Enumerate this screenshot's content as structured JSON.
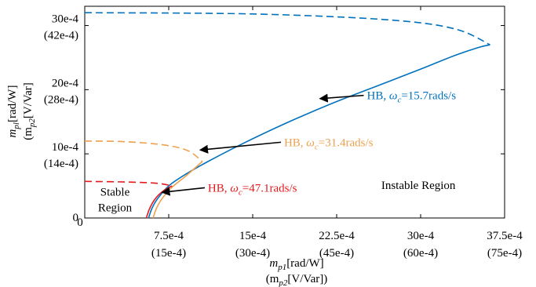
{
  "chart_data": {
    "type": "line",
    "xlim": [
      0,
      0.00375
    ],
    "ylim": [
      0,
      0.0033
    ],
    "x_ticks": [
      {
        "value": 0,
        "label": "0",
        "sub": ""
      },
      {
        "value": 0.00075,
        "label": "7.5e-4",
        "sub": "(15e-4)"
      },
      {
        "value": 0.0015,
        "label": "15e-4",
        "sub": "(30e-4)"
      },
      {
        "value": 0.00225,
        "label": "22.5e-4",
        "sub": "(45e-4)"
      },
      {
        "value": 0.003,
        "label": "30e-4",
        "sub": "(60e-4)"
      },
      {
        "value": 0.00375,
        "label": "37.5e-4",
        "sub": "(75e-4)"
      }
    ],
    "y_ticks": [
      {
        "value": 0,
        "label": "0",
        "sub": ""
      },
      {
        "value": 0.001,
        "label": "10e-4",
        "sub": "(14e-4)"
      },
      {
        "value": 0.002,
        "label": "20e-4",
        "sub": "(28e-4)"
      },
      {
        "value": 0.003,
        "label": "30e-4",
        "sub": "(42e-4)"
      }
    ],
    "xlabel": {
      "main": "m",
      "main_sub": "p1",
      "main_unit": "[rad/W]",
      "alt": "(m",
      "alt_sub": "p2",
      "alt_unit": "[V/Var])"
    },
    "ylabel": {
      "main": "m",
      "main_sub": "pl",
      "main_unit": "[rad/W]",
      "alt": "(m",
      "alt_sub": "p2",
      "alt_unit": "[V/Var]"
    },
    "grid": false,
    "series": [
      {
        "color": "#0072BD",
        "solid": [
          [
            0.00057,
            0
          ],
          [
            0.0006,
            0.00015
          ],
          [
            0.00065,
            0.0003
          ],
          [
            0.00075,
            0.0005
          ],
          [
            0.0009,
            0.00068
          ],
          [
            0.0011,
            0.00088
          ],
          [
            0.0014,
            0.00115
          ],
          [
            0.0018,
            0.00148
          ],
          [
            0.0022,
            0.00178
          ],
          [
            0.0026,
            0.00205
          ],
          [
            0.003,
            0.00232
          ],
          [
            0.0033,
            0.00253
          ],
          [
            0.00352,
            0.00266
          ],
          [
            0.00362,
            0.0027
          ]
        ],
        "dashed": [
          [
            0,
            0.0032
          ],
          [
            0.0015,
            0.00318
          ],
          [
            0.0027,
            0.00309
          ],
          [
            0.0033,
            0.00295
          ],
          [
            0.00362,
            0.0027
          ]
        ]
      },
      {
        "color": "#EDA04E",
        "solid": [
          [
            0.00061,
            0
          ],
          [
            0.00064,
            0.00015
          ],
          [
            0.00069,
            0.0003
          ],
          [
            0.00078,
            0.00048
          ],
          [
            0.0009,
            0.00065
          ],
          [
            0.00105,
            0.00088
          ]
        ],
        "dashed": [
          [
            0,
            0.0012
          ],
          [
            0.00035,
            0.00119
          ],
          [
            0.0007,
            0.00114
          ],
          [
            0.00092,
            0.00105
          ],
          [
            0.00105,
            0.00088
          ]
        ]
      },
      {
        "color": "#E41A1C",
        "solid": [
          [
            0.00055,
            0
          ],
          [
            0.00058,
            0.00015
          ],
          [
            0.00063,
            0.0003
          ],
          [
            0.0007,
            0.00042
          ],
          [
            0.00078,
            0.0005
          ]
        ],
        "dashed": [
          [
            0,
            0.00057
          ],
          [
            0.0004,
            0.00056
          ],
          [
            0.00065,
            0.00054
          ],
          [
            0.00078,
            0.0005
          ]
        ]
      }
    ],
    "annotations": [
      {
        "prefix": "HB, ",
        "omega": "ω",
        "sub": "c",
        "value": "=15.7rads/s",
        "color": "#0072BD",
        "tx": 0.00252,
        "ty": 0.00185,
        "ax": 0.0021,
        "ay": 0.00186
      },
      {
        "prefix": "HB, ",
        "omega": "ω",
        "sub": "c",
        "value": "=31.4rads/s",
        "color": "#EDA04E",
        "tx": 0.00178,
        "ty": 0.00112,
        "ax": 0.00103,
        "ay": 0.00106
      },
      {
        "prefix": "HB, ",
        "omega": "ω",
        "sub": "c",
        "value": "=47.1rads/s",
        "color": "#E41A1C",
        "tx": 0.0011,
        "ty": 0.00041,
        "ax": 0.00069,
        "ay": 0.0004
      }
    ],
    "region_labels": [
      {
        "lines": [
          "Stable",
          "Region"
        ],
        "x": 0.00027,
        "y": 0.00035,
        "anchor": "middle"
      },
      {
        "lines": [
          "Instable Region"
        ],
        "x": 0.00298,
        "y": 0.00045,
        "anchor": "middle"
      }
    ]
  }
}
